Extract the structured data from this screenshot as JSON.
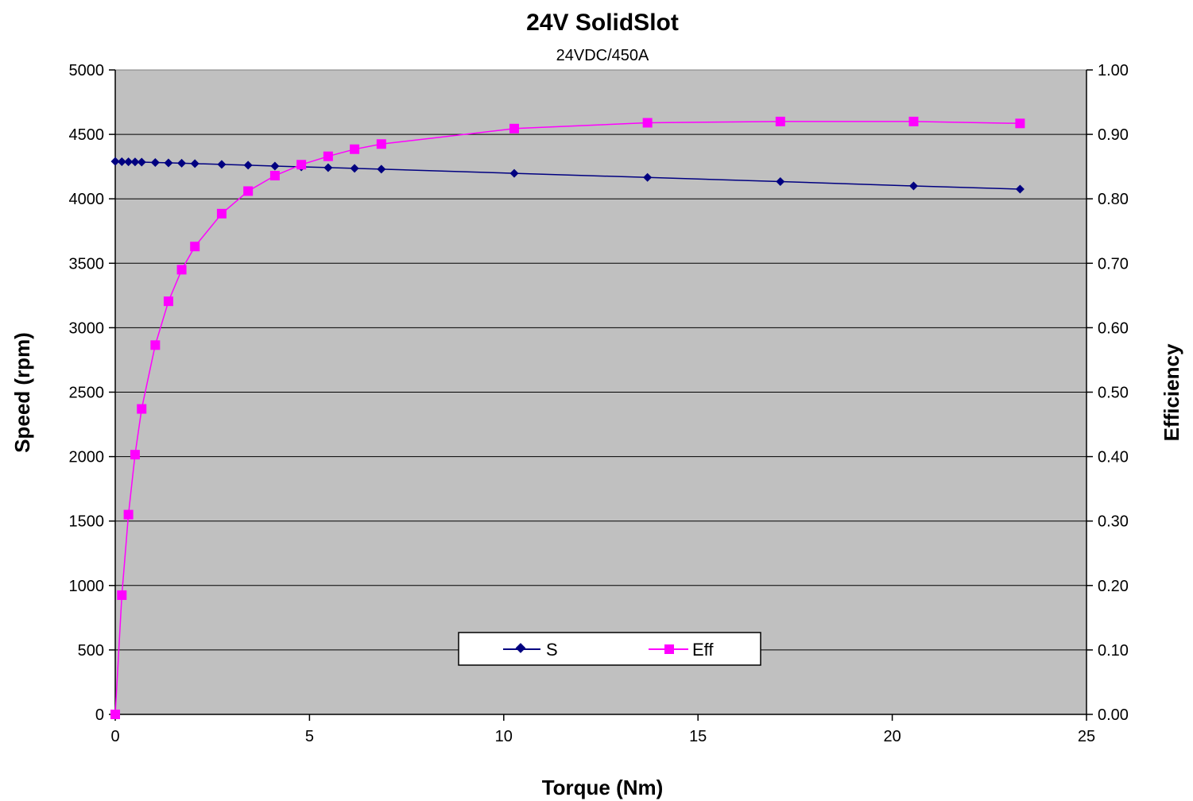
{
  "chart_data": {
    "type": "line",
    "title": "24V SolidSlot",
    "subtitle": "24VDC/450A",
    "xlabel": "Torque (Nm)",
    "ylabel": "Speed (rpm)",
    "y2label": "Efficiency",
    "xlim": [
      0,
      25
    ],
    "ylim": [
      0,
      5000
    ],
    "y2lim": [
      0,
      1.0
    ],
    "x_ticks": [
      "0",
      "5",
      "10",
      "15",
      "20",
      "25"
    ],
    "y_ticks": [
      "0",
      "500",
      "1000",
      "1500",
      "2000",
      "2500",
      "3000",
      "3500",
      "4000",
      "4500",
      "5000"
    ],
    "y2_ticks": [
      "0.00",
      "0.10",
      "0.20",
      "0.30",
      "0.40",
      "0.50",
      "0.60",
      "0.70",
      "0.80",
      "0.90",
      "1.00"
    ],
    "grid": true,
    "legend_position": "bottom-center",
    "plot_background": "#c0c0c0",
    "series": [
      {
        "name": "S",
        "axis": "left",
        "marker": "diamond",
        "color": "#000080",
        "x": [
          0,
          0.17,
          0.34,
          0.51,
          0.68,
          1.03,
          1.37,
          1.71,
          2.05,
          2.74,
          3.42,
          4.11,
          4.79,
          5.48,
          6.16,
          6.85,
          10.27,
          13.7,
          17.12,
          20.55,
          23.29
        ],
        "y": [
          4290,
          4288,
          4287,
          4286,
          4285,
          4282,
          4279,
          4276,
          4273,
          4267,
          4261,
          4254,
          4248,
          4242,
          4236,
          4230,
          4198,
          4166,
          4134,
          4100,
          4075
        ]
      },
      {
        "name": "Eff",
        "axis": "right",
        "marker": "square",
        "color": "#ff00ff",
        "x": [
          0,
          0.17,
          0.34,
          0.51,
          0.68,
          1.03,
          1.37,
          1.71,
          2.05,
          2.74,
          3.42,
          4.11,
          4.79,
          5.48,
          6.16,
          6.85,
          10.27,
          13.7,
          17.12,
          20.55,
          23.29
        ],
        "y": [
          0.0,
          0.185,
          0.31,
          0.403,
          0.474,
          0.573,
          0.641,
          0.69,
          0.726,
          0.777,
          0.812,
          0.836,
          0.853,
          0.866,
          0.877,
          0.885,
          0.909,
          0.918,
          0.92,
          0.92,
          0.917
        ]
      }
    ]
  }
}
